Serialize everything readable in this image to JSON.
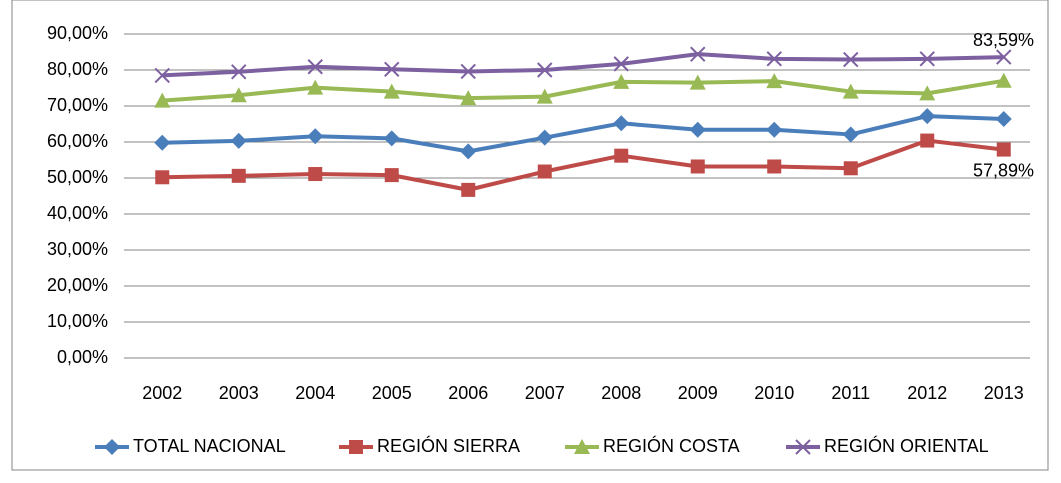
{
  "chart_data": {
    "type": "line",
    "categories": [
      "2002",
      "2003",
      "2004",
      "2005",
      "2006",
      "2007",
      "2008",
      "2009",
      "2010",
      "2011",
      "2012",
      "2013"
    ],
    "series": [
      {
        "name": "TOTAL NACIONAL",
        "color": "#4a7ebb",
        "marker": "diamond",
        "values": [
          59.8,
          60.3,
          61.6,
          61.0,
          57.4,
          61.2,
          65.2,
          63.4,
          63.4,
          62.1,
          67.2,
          66.4
        ]
      },
      {
        "name": "REGIÓN SIERRA",
        "color": "#be4b48",
        "marker": "square",
        "values": [
          50.2,
          50.6,
          51.1,
          50.8,
          46.7,
          51.8,
          56.2,
          53.2,
          53.2,
          52.7,
          60.4,
          57.89
        ],
        "value_labels": [
          null,
          null,
          null,
          null,
          null,
          null,
          null,
          null,
          null,
          null,
          null,
          "57,89%"
        ]
      },
      {
        "name": "REGIÓN COSTA",
        "color": "#98b954",
        "marker": "triangle",
        "values": [
          71.5,
          73.0,
          75.1,
          74.0,
          72.2,
          72.6,
          76.7,
          76.5,
          76.9,
          74.0,
          73.5,
          77.0
        ]
      },
      {
        "name": "REGIÓN ORIENTAL",
        "color": "#7d60a0",
        "marker": "x",
        "values": [
          78.5,
          79.5,
          80.9,
          80.2,
          79.6,
          80.0,
          81.7,
          84.4,
          83.1,
          82.9,
          83.1,
          83.59
        ],
        "value_labels": [
          null,
          null,
          null,
          null,
          null,
          null,
          null,
          null,
          null,
          null,
          null,
          "83,59%"
        ]
      }
    ],
    "ylim": [
      0,
      90
    ],
    "yticks": [
      {
        "value": 0,
        "label": "0,00%"
      },
      {
        "value": 10,
        "label": "10,00%"
      },
      {
        "value": 20,
        "label": "20,00%"
      },
      {
        "value": 30,
        "label": "30,00%"
      },
      {
        "value": 40,
        "label": "40,00%"
      },
      {
        "value": 50,
        "label": "50,00%"
      },
      {
        "value": 60,
        "label": "60,00%"
      },
      {
        "value": 70,
        "label": "70,00%"
      },
      {
        "value": 80,
        "label": "80,00%"
      },
      {
        "value": 90,
        "label": "90,00%"
      }
    ],
    "grid": true,
    "legend": "bottom"
  }
}
